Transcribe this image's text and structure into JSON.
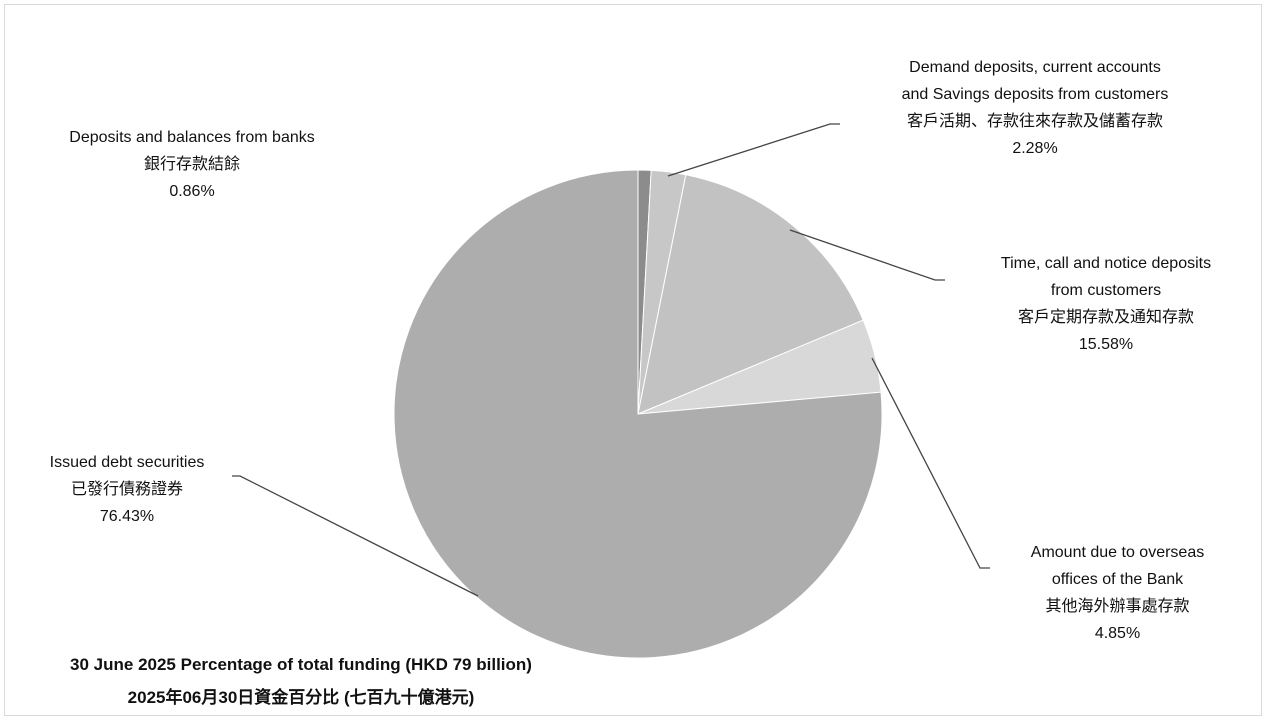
{
  "chart_data": {
    "type": "pie",
    "slices": [
      {
        "key": "banks",
        "value": 0.86,
        "color": "#8c8c8c",
        "label_en": "Deposits and balances from banks",
        "label_zh": "銀行存款結餘",
        "pct": "0.86%"
      },
      {
        "key": "demand",
        "value": 2.28,
        "color": "#c7c7c7",
        "label_en": "Demand deposits, current accounts and Savings deposits from customers",
        "label_en_lines": [
          "Demand deposits, current accounts",
          "and Savings deposits from customers"
        ],
        "label_zh": "客戶活期、存款往來存款及儲蓄存款",
        "pct": "2.28%"
      },
      {
        "key": "time",
        "value": 15.58,
        "color": "#c2c2c2",
        "label_en": "Time, call and notice deposits from customers",
        "label_en_lines": [
          "Time, call and notice deposits",
          "from customers"
        ],
        "label_zh": "客戶定期存款及通知存款",
        "pct": "15.58%"
      },
      {
        "key": "overseas",
        "value": 4.85,
        "color": "#d8d8d8",
        "label_en": "Amount due to overseas offices of the Bank",
        "label_en_lines": [
          "Amount due to overseas",
          "offices of the Bank"
        ],
        "label_zh": "其他海外辦事處存款",
        "pct": "4.85%"
      },
      {
        "key": "issued",
        "value": 76.43,
        "color": "#adadad",
        "label_en": "Issued debt securities",
        "label_zh": "已發行債務證券",
        "pct": "76.43%"
      }
    ],
    "start": "12 o'clock",
    "direction": "clockwise",
    "footer_en": "30 June 2025 Percentage of total funding (HKD 79 billion)",
    "footer_zh": "2025年06月30日資金百分比 (七百九十億港元)"
  }
}
